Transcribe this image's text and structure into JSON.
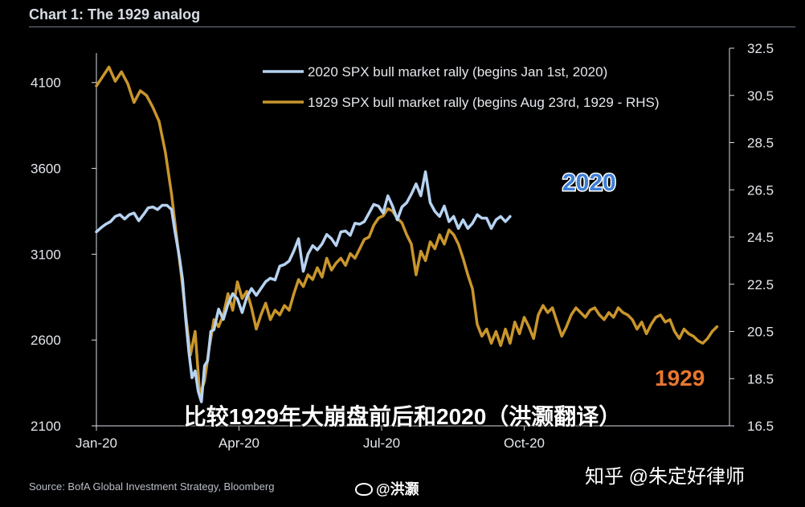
{
  "title": "Chart 1: The 1929 analog",
  "source": "Source:  BofA Global Investment Strategy, Bloomberg",
  "overlay_caption": "比较1929年大崩盘前后和2020（洪灏翻译）",
  "watermarks": {
    "weibo": "@洪灏",
    "zhihu": "知乎 @朱定好律师"
  },
  "colors": {
    "background": "#000000",
    "series_2020": "#b7d3f2",
    "series_1929": "#c9962c",
    "label_2020": "#3d7fd6",
    "label_1929": "#e8772e"
  },
  "chart_data": {
    "type": "line",
    "x_ticks": [
      "Jan-20",
      "Apr-20",
      "Jul-20",
      "Oct-20"
    ],
    "left_axis": {
      "ticks": [
        "2100",
        "2600",
        "3100",
        "3600",
        "4100"
      ],
      "range": [
        2100,
        4300
      ]
    },
    "right_axis": {
      "ticks": [
        "16.5",
        "18.5",
        "20.5",
        "22.5",
        "24.5",
        "26.5",
        "28.5",
        "30.5",
        "32.5"
      ],
      "range": [
        16.5,
        32.5
      ]
    },
    "legend_position": "top-center",
    "grid": false,
    "series": [
      {
        "name": "2020 SPX bull market rally (begins Jan 1st, 2020)",
        "axis": "left",
        "end_label": "2020",
        "x": [
          0,
          3,
          6,
          9,
          12,
          15,
          18,
          21,
          24,
          27,
          30,
          33,
          36,
          39,
          42,
          45,
          48,
          50,
          53,
          55,
          57,
          59,
          61,
          63,
          65,
          67,
          69,
          71,
          73,
          75,
          78,
          81,
          84,
          87,
          90,
          93,
          96,
          99,
          102,
          105,
          108,
          111,
          114,
          117,
          120,
          123,
          126,
          129,
          132,
          135,
          138,
          141,
          144,
          147,
          150,
          153,
          156,
          159,
          162,
          165,
          168,
          171,
          174,
          177,
          180,
          183,
          186,
          189,
          192,
          195,
          198,
          201,
          204,
          207,
          210,
          213,
          216,
          219,
          222,
          225,
          228,
          231,
          234,
          237,
          240,
          243,
          246,
          249,
          252,
          255,
          258,
          261,
          264
        ],
        "y": [
          3230,
          3255,
          3275,
          3290,
          3320,
          3330,
          3305,
          3330,
          3340,
          3295,
          3330,
          3370,
          3375,
          3360,
          3385,
          3385,
          3360,
          3240,
          3080,
          2950,
          2720,
          2530,
          2380,
          2420,
          2300,
          2240,
          2450,
          2480,
          2650,
          2660,
          2780,
          2720,
          2810,
          2870,
          2840,
          2760,
          2850,
          2900,
          2860,
          2900,
          2940,
          2960,
          2950,
          3030,
          3040,
          3060,
          3120,
          3190,
          3000,
          3100,
          3150,
          3125,
          3160,
          3215,
          3190,
          3150,
          3230,
          3235,
          3210,
          3280,
          3275,
          3290,
          3340,
          3390,
          3380,
          3340,
          3440,
          3380,
          3300,
          3375,
          3400,
          3450,
          3510,
          3440,
          3580,
          3400,
          3350,
          3320,
          3380,
          3290,
          3320,
          3250,
          3300,
          3250,
          3280,
          3330,
          3310,
          3310,
          3250,
          3300,
          3320,
          3290,
          3320
        ]
      },
      {
        "name": "1929 SPX bull market rally (begins Aug 23rd, 1929 - RHS)",
        "axis": "right",
        "end_label": "1929",
        "x": [
          0,
          4,
          8,
          12,
          16,
          20,
          24,
          28,
          32,
          36,
          40,
          44,
          48,
          51,
          54,
          57,
          60,
          63,
          66,
          69,
          72,
          75,
          78,
          81,
          84,
          87,
          90,
          93,
          96,
          99,
          102,
          105,
          108,
          111,
          114,
          117,
          120,
          123,
          126,
          129,
          132,
          135,
          138,
          141,
          144,
          147,
          150,
          153,
          156,
          159,
          162,
          165,
          168,
          171,
          174,
          177,
          180,
          183,
          186,
          189,
          192,
          195,
          198,
          201,
          204,
          207,
          210,
          213,
          216,
          219,
          222,
          225,
          228,
          231,
          234,
          237,
          240,
          243,
          246,
          249,
          252,
          255,
          258,
          261,
          264,
          267,
          270,
          273,
          276,
          279,
          282,
          285,
          288,
          291,
          294,
          297,
          300,
          303,
          306,
          309,
          312,
          315,
          318,
          321,
          324,
          327,
          330,
          333,
          336,
          339,
          342,
          345,
          348,
          351,
          354,
          357,
          360,
          363,
          366,
          369,
          372,
          375,
          378,
          381,
          384,
          387,
          390,
          393,
          396
        ],
        "y": [
          30.9,
          31.3,
          31.7,
          31.1,
          31.5,
          31.0,
          30.2,
          30.7,
          30.5,
          30.0,
          29.4,
          28.1,
          26.3,
          24.6,
          23.0,
          21.2,
          19.5,
          20.5,
          17.8,
          18.4,
          19.8,
          21.0,
          20.7,
          21.2,
          22.1,
          21.4,
          22.6,
          21.9,
          22.2,
          21.5,
          20.6,
          21.2,
          21.7,
          21.0,
          21.4,
          21.2,
          21.6,
          21.4,
          22.1,
          22.7,
          22.4,
          22.9,
          22.7,
          23.2,
          22.8,
          23.6,
          23.1,
          23.4,
          23.6,
          23.3,
          23.8,
          23.6,
          24.0,
          24.4,
          24.5,
          25.0,
          25.3,
          25.4,
          25.7,
          25.6,
          25.3,
          25.1,
          24.6,
          24.2,
          22.9,
          23.9,
          23.5,
          24.3,
          24.0,
          24.6,
          24.2,
          24.8,
          24.6,
          24.2,
          23.6,
          22.9,
          22.3,
          20.8,
          20.3,
          20.6,
          20.0,
          20.5,
          19.9,
          20.6,
          20.0,
          20.9,
          20.4,
          21.1,
          20.7,
          20.2,
          21.2,
          21.6,
          21.3,
          21.5,
          20.9,
          20.3,
          20.7,
          21.2,
          21.5,
          21.3,
          21.1,
          21.4,
          21.5,
          21.2,
          21.0,
          21.3,
          21.1,
          21.5,
          21.3,
          21.2,
          21.0,
          20.6,
          20.9,
          20.4,
          20.8,
          21.1,
          21.2,
          20.9,
          21.0,
          20.5,
          20.2,
          20.6,
          20.4,
          20.3,
          20.1,
          20.0,
          20.2,
          20.5,
          20.7
        ]
      }
    ]
  }
}
